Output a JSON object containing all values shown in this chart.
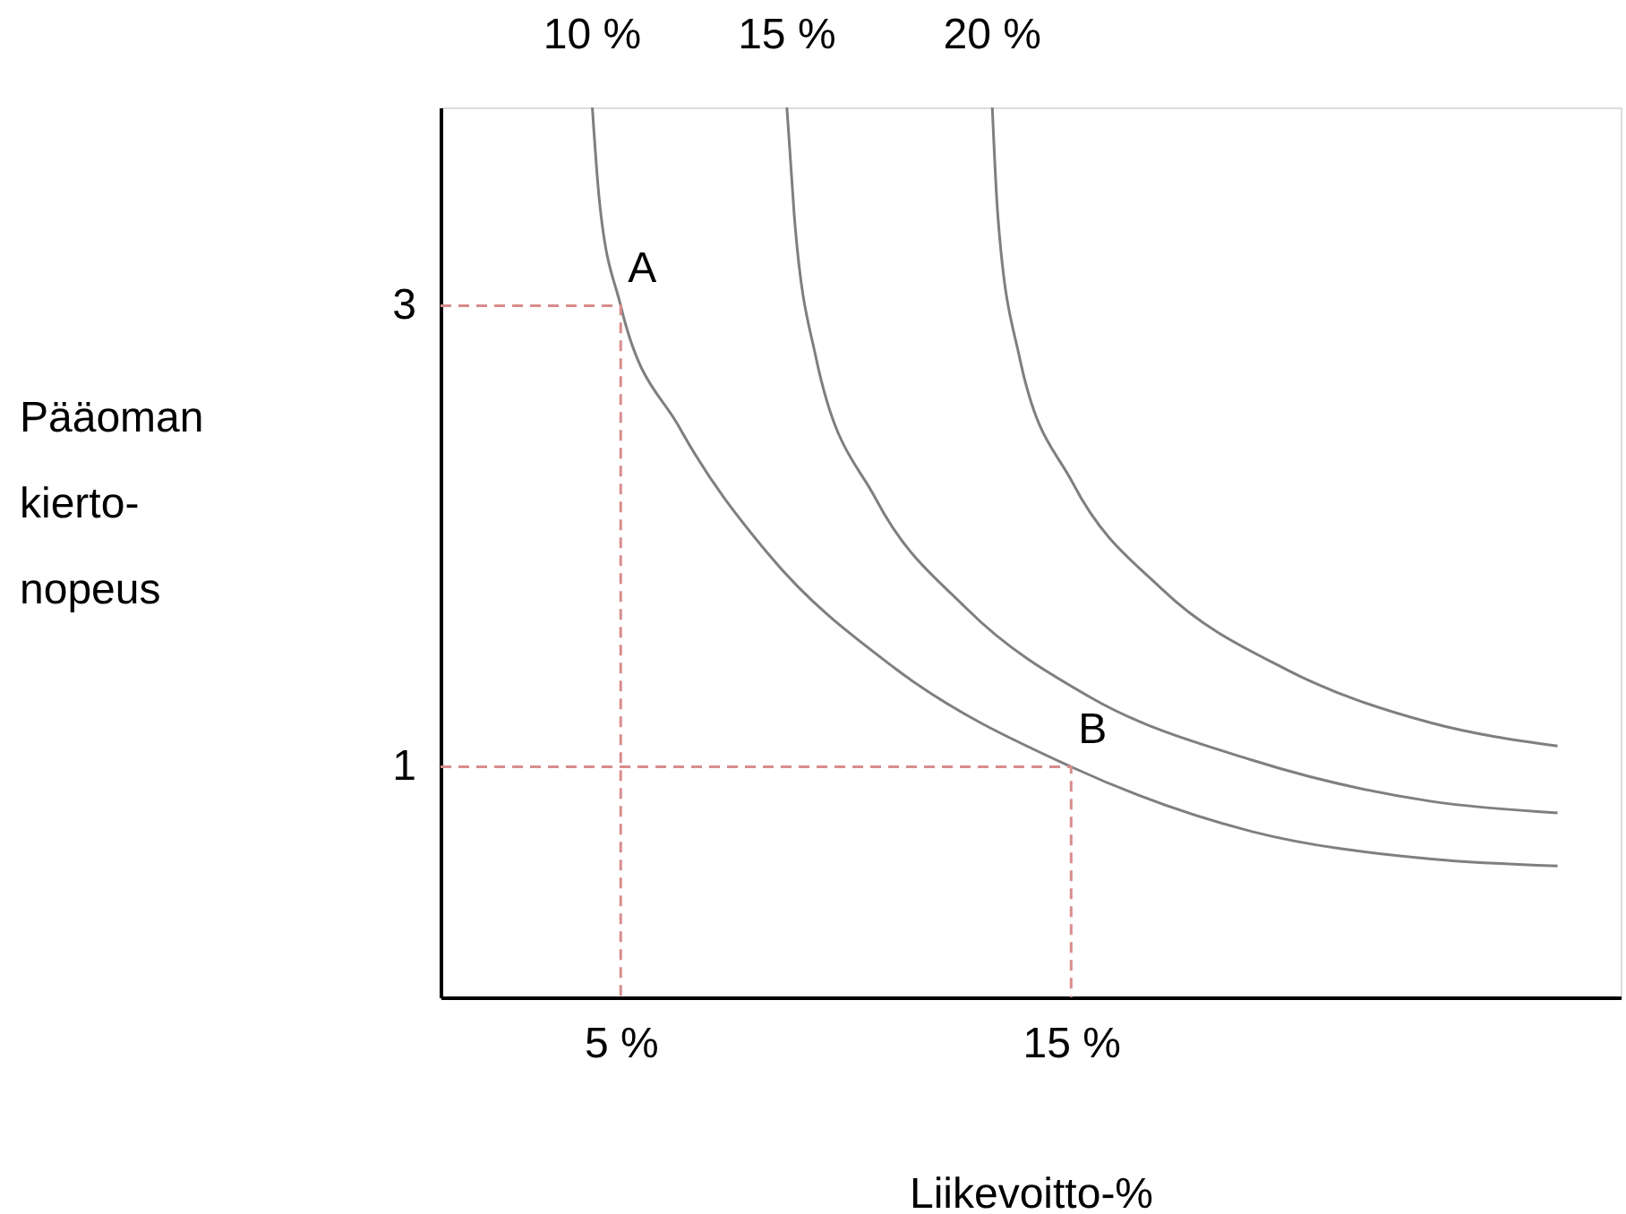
{
  "chart_data": {
    "type": "line",
    "xlabel": "Liikevoitto-%",
    "xlim": [
      1,
      27.2
    ],
    "ylim": [
      0,
      3.86
    ],
    "xticks": [
      {
        "value": 5,
        "label": "5 %"
      },
      {
        "value": 15,
        "label": "15 %"
      }
    ],
    "yticks": [
      {
        "value": 1,
        "label": "1"
      },
      {
        "value": 3,
        "label": "3"
      }
    ],
    "grid": false,
    "series": [
      {
        "name": "10 %",
        "color": "#7f7f7f",
        "x": [
          4.37,
          4.52,
          5,
          6.31,
          8.29,
          11.07,
          15,
          19.0,
          23.0,
          25.8
        ],
        "values": [
          3.86,
          3.47,
          3,
          2.47,
          1.92,
          1.43,
          1,
          0.72,
          0.6,
          0.57
        ]
      },
      {
        "name": "15 %",
        "color": "#7f7f7f",
        "x": [
          8.69,
          8.85,
          9.33,
          10.67,
          12.66,
          15.44,
          19.0,
          23.0,
          25.8
        ],
        "values": [
          3.86,
          3.4,
          2.78,
          2.16,
          1.69,
          1.3,
          1.03,
          0.85,
          0.8
        ]
      },
      {
        "name": "20 %",
        "color": "#7f7f7f",
        "x": [
          13.25,
          13.37,
          13.85,
          15.04,
          17.02,
          19.8,
          23.0,
          25.8
        ],
        "values": [
          3.86,
          3.4,
          2.78,
          2.23,
          1.77,
          1.42,
          1.19,
          1.09
        ]
      },
      {
        "color": "#d98c8c",
        "line_style": "dashed",
        "x": [
          1,
          5,
          5
        ],
        "values": [
          3,
          3,
          0
        ]
      },
      {
        "color": "#d98c8c",
        "line_style": "dashed",
        "x": [
          1,
          15,
          15
        ],
        "values": [
          1,
          1,
          0
        ]
      }
    ],
    "annotations": [
      "Pääoman\nkierto-\nnopeus",
      {
        "text": "A",
        "x": 5,
        "y": 3
      },
      {
        "text": "B",
        "x": 15,
        "y": 1
      }
    ]
  }
}
